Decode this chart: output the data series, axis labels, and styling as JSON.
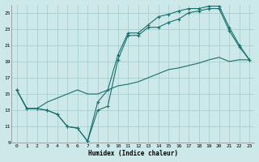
{
  "xlabel": "Humidex (Indice chaleur)",
  "background_color": "#cce8e8",
  "grid_color": "#aacece",
  "line_color": "#1a6e6e",
  "xlim": [
    -0.5,
    23.5
  ],
  "ylim": [
    9,
    26
  ],
  "xticks": [
    0,
    1,
    2,
    3,
    4,
    5,
    6,
    7,
    8,
    9,
    10,
    11,
    12,
    13,
    14,
    15,
    16,
    17,
    18,
    19,
    20,
    21,
    22,
    23
  ],
  "yticks": [
    9,
    11,
    13,
    15,
    17,
    19,
    21,
    23,
    25
  ],
  "line1_x": [
    0,
    1,
    2,
    3,
    4,
    5,
    6,
    7,
    8,
    9,
    10,
    11,
    12,
    13,
    14,
    15,
    16,
    17,
    18,
    19,
    20,
    21,
    22,
    23
  ],
  "line1_y": [
    15.5,
    13.2,
    13.2,
    13.0,
    12.5,
    11.0,
    10.8,
    9.2,
    13.0,
    13.5,
    19.2,
    22.2,
    22.2,
    23.2,
    23.2,
    23.8,
    24.2,
    25.0,
    25.2,
    25.5,
    25.5,
    22.8,
    20.8,
    19.2
  ],
  "line2_x": [
    0,
    1,
    2,
    3,
    4,
    5,
    6,
    7,
    8,
    9,
    10,
    11,
    12,
    13,
    14,
    15,
    16,
    17,
    18,
    19,
    20,
    21,
    22,
    23
  ],
  "line2_y": [
    15.5,
    13.2,
    13.2,
    13.0,
    12.5,
    11.0,
    10.8,
    9.2,
    14.0,
    15.5,
    19.8,
    22.5,
    22.5,
    23.5,
    24.5,
    24.8,
    25.2,
    25.5,
    25.5,
    25.8,
    25.8,
    23.2,
    21.0,
    19.2
  ],
  "line3_x": [
    0,
    1,
    2,
    3,
    4,
    5,
    6,
    7,
    8,
    9,
    10,
    11,
    12,
    13,
    14,
    15,
    16,
    17,
    18,
    19,
    20,
    21,
    22,
    23
  ],
  "line3_y": [
    15.5,
    13.2,
    13.2,
    14.0,
    14.5,
    15.0,
    15.5,
    15.0,
    15.0,
    15.5,
    16.0,
    16.2,
    16.5,
    17.0,
    17.5,
    18.0,
    18.2,
    18.5,
    18.8,
    19.2,
    19.5,
    19.0,
    19.2,
    19.2
  ]
}
